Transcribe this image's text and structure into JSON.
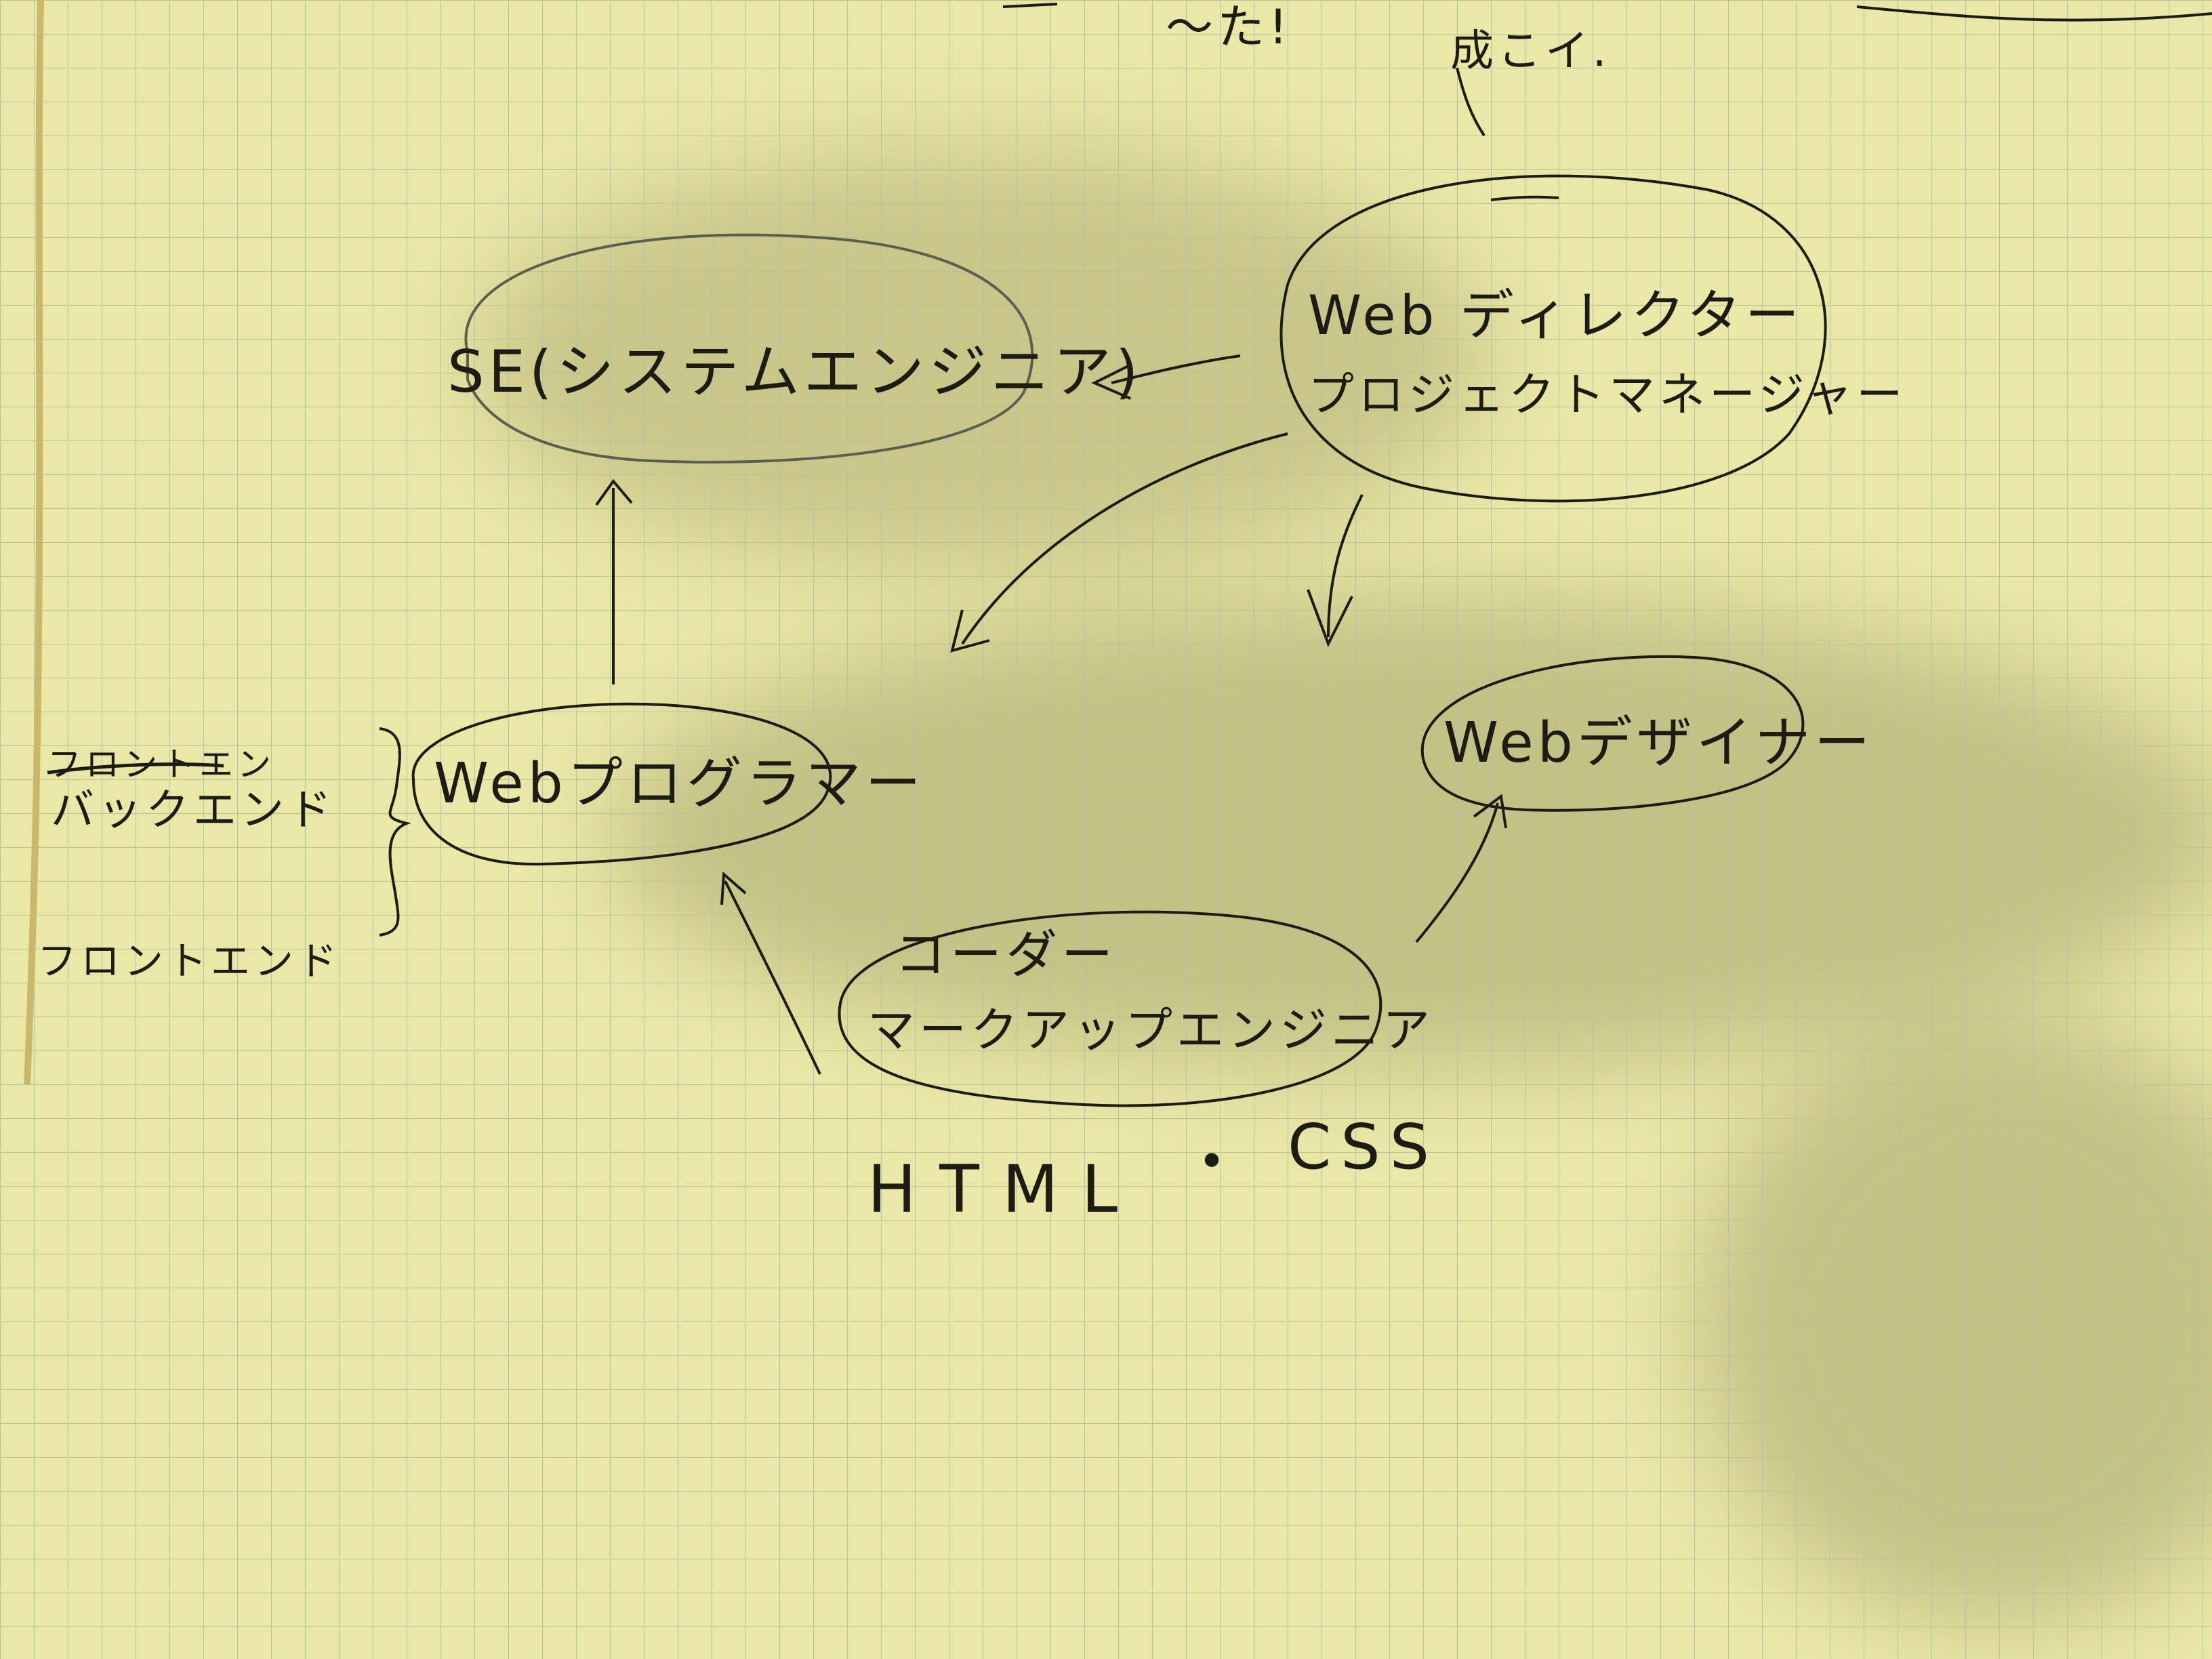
{
  "colors": {
    "paper": "#e9e8a6",
    "grid": "#b9c29b",
    "ink": "#1c1c14",
    "pencil": "#5e5e4e",
    "shadow": "#7d7d4a"
  },
  "top_fragment": {
    "line1": "～た!",
    "line2": "成こイ."
  },
  "nodes": {
    "se": {
      "label": "SE(システムエンジニア)"
    },
    "director": {
      "line1": "Web ディレクター",
      "line2": "プロジェクトマネージャー"
    },
    "programmer": {
      "label": "Webプログラマー"
    },
    "designer": {
      "label": "Webデザイナー"
    },
    "coder": {
      "line1": "コーダー",
      "line2": "マークアップエンジニア"
    }
  },
  "side_notes": {
    "struck": "フロントエン",
    "backend": "バックエンド",
    "frontend": "フロントエンド"
  },
  "footer": {
    "html": "HTML",
    "dot": "・",
    "css": "CSS"
  }
}
